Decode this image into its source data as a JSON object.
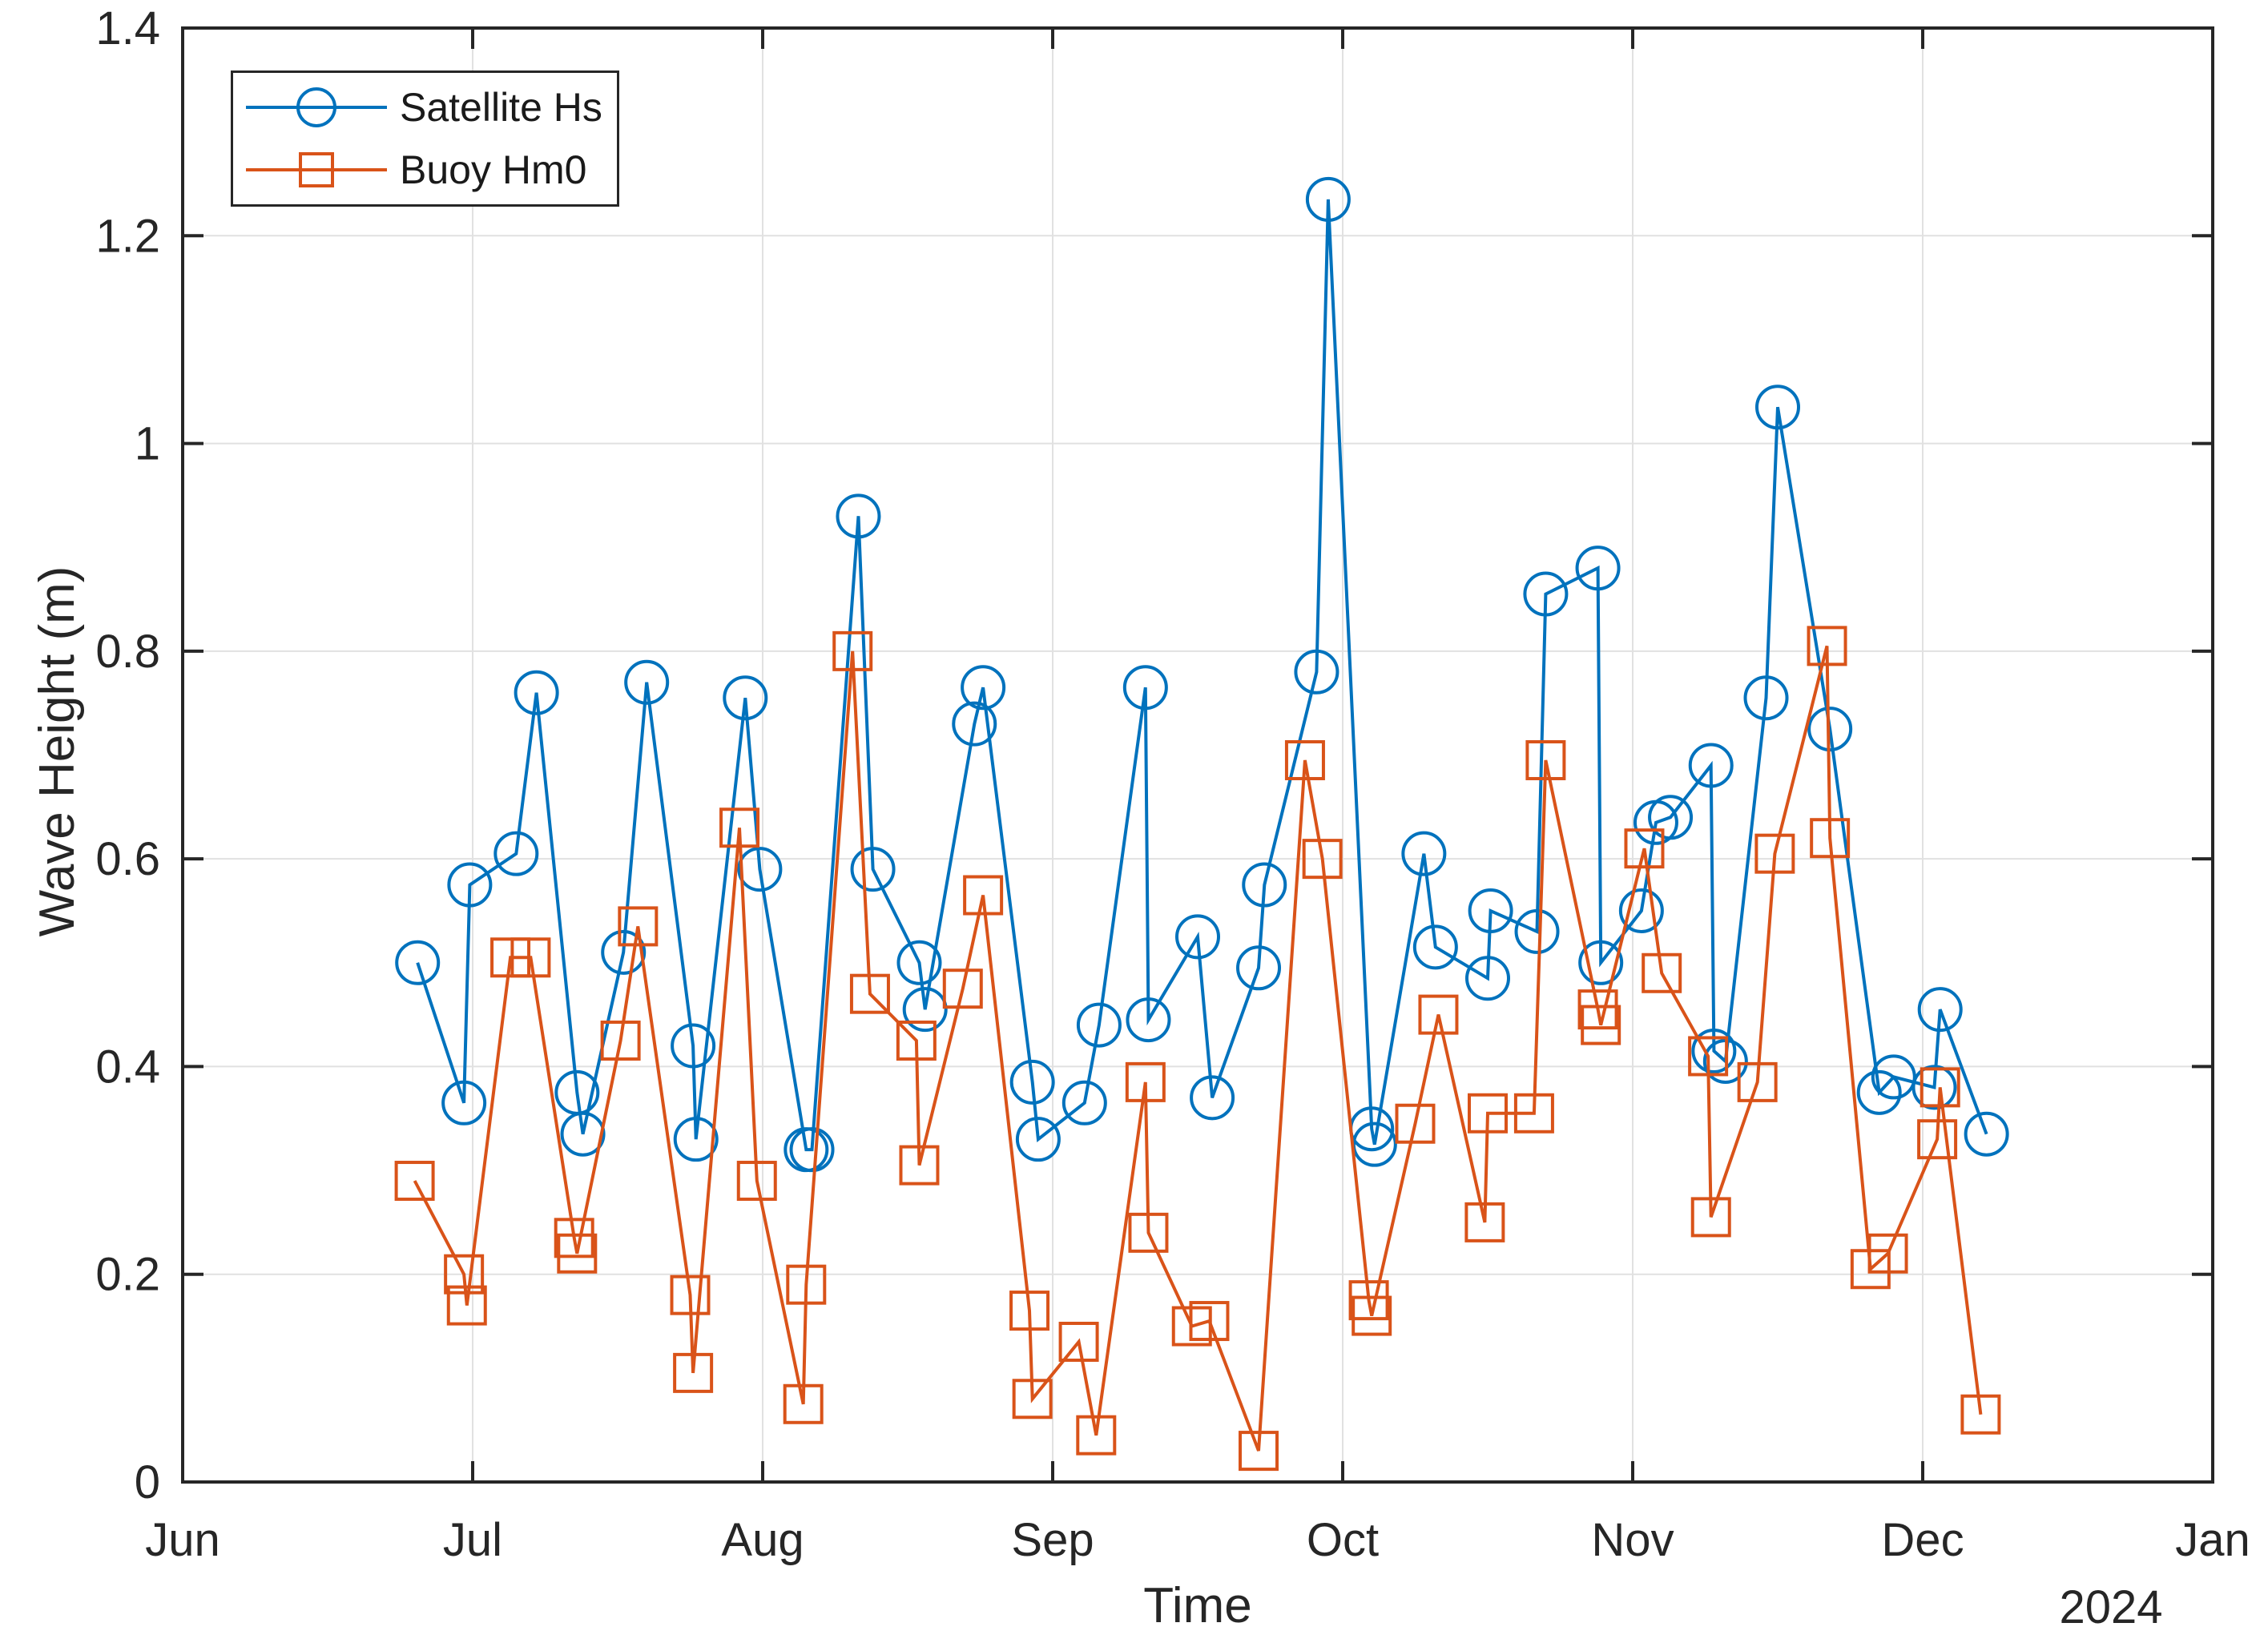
{
  "chart_data": {
    "type": "line",
    "title": "",
    "xlabel": "Time",
    "ylabel": "Wave Height (m)",
    "x_units": "months after Jun 1 (0 = Jun 1, 7 = Jan 1)",
    "x_axis": {
      "tick_labels": [
        "Jun",
        "Jul",
        "Aug",
        "Sep",
        "Oct",
        "Nov",
        "Dec",
        "Jan"
      ],
      "tick_units": [
        0,
        1,
        2,
        3,
        4,
        5,
        6,
        7
      ],
      "year_label": "2024",
      "range": [
        0,
        7
      ]
    },
    "y_axis": {
      "tick_labels": [
        "0",
        "0.2",
        "0.4",
        "0.6",
        "0.8",
        "1",
        "1.2",
        "1.4"
      ],
      "tick_values": [
        0,
        0.2,
        0.4,
        0.6,
        0.8,
        1.0,
        1.2,
        1.4
      ],
      "ylim": [
        0,
        1.4
      ]
    },
    "grid": true,
    "colors": {
      "axis": "#262626",
      "grid": "#E1E1E1",
      "background": "#FFFFFF"
    },
    "legend": {
      "position": "top-left",
      "entries": [
        "Satellite Hs",
        "Buoy Hm0"
      ]
    },
    "series": [
      {
        "name": "Satellite Hs",
        "color": "#0072BD",
        "marker": "circle",
        "x": [
          0.81,
          0.97,
          0.99,
          1.15,
          1.22,
          1.36,
          1.38,
          1.52,
          1.6,
          1.76,
          1.77,
          1.94,
          1.99,
          2.15,
          2.17,
          2.33,
          2.38,
          2.54,
          2.56,
          2.73,
          2.76,
          2.93,
          2.95,
          3.11,
          3.16,
          3.32,
          3.33,
          3.5,
          3.55,
          3.71,
          3.73,
          3.91,
          3.95,
          4.1,
          4.11,
          4.28,
          4.32,
          4.5,
          4.51,
          4.67,
          4.7,
          4.88,
          4.89,
          5.03,
          5.08,
          5.13,
          5.27,
          5.28,
          5.32,
          5.46,
          5.5,
          5.68,
          5.85,
          5.9,
          6.04,
          6.06,
          6.22
        ],
        "y": [
          0.5,
          0.365,
          0.575,
          0.605,
          0.76,
          0.375,
          0.335,
          0.51,
          0.77,
          0.42,
          0.33,
          0.755,
          0.59,
          0.32,
          0.32,
          0.93,
          0.59,
          0.5,
          0.455,
          0.73,
          0.765,
          0.385,
          0.33,
          0.365,
          0.44,
          0.765,
          0.445,
          0.525,
          0.37,
          0.495,
          0.575,
          0.78,
          1.235,
          0.34,
          0.325,
          0.605,
          0.515,
          0.485,
          0.55,
          0.53,
          0.855,
          0.88,
          0.5,
          0.55,
          0.635,
          0.64,
          0.69,
          0.415,
          0.405,
          0.755,
          1.035,
          0.725,
          0.375,
          0.39,
          0.38,
          0.455,
          0.335
        ]
      },
      {
        "name": "Buoy Hm0",
        "color": "#D95319",
        "marker": "square",
        "x": [
          0.8,
          0.97,
          0.98,
          1.13,
          1.2,
          1.35,
          1.36,
          1.51,
          1.57,
          1.75,
          1.76,
          1.92,
          1.98,
          2.14,
          2.15,
          2.31,
          2.37,
          2.53,
          2.54,
          2.69,
          2.76,
          2.92,
          2.93,
          3.09,
          3.15,
          3.32,
          3.33,
          3.48,
          3.54,
          3.71,
          3.87,
          3.93,
          4.09,
          4.1,
          4.25,
          4.33,
          4.49,
          4.5,
          4.66,
          4.7,
          4.88,
          4.89,
          5.04,
          5.1,
          5.26,
          5.27,
          5.43,
          5.49,
          5.67,
          5.68,
          5.82,
          5.88,
          6.05,
          6.06,
          6.2
        ],
        "y": [
          0.29,
          0.2,
          0.17,
          0.505,
          0.505,
          0.235,
          0.22,
          0.425,
          0.535,
          0.18,
          0.105,
          0.63,
          0.29,
          0.075,
          0.19,
          0.8,
          0.47,
          0.425,
          0.305,
          0.475,
          0.565,
          0.165,
          0.08,
          0.135,
          0.045,
          0.385,
          0.24,
          0.15,
          0.155,
          0.03,
          0.695,
          0.6,
          0.175,
          0.16,
          0.345,
          0.45,
          0.25,
          0.355,
          0.355,
          0.695,
          0.455,
          0.44,
          0.61,
          0.49,
          0.41,
          0.255,
          0.385,
          0.605,
          0.805,
          0.62,
          0.205,
          0.22,
          0.33,
          0.38,
          0.065
        ]
      }
    ]
  }
}
